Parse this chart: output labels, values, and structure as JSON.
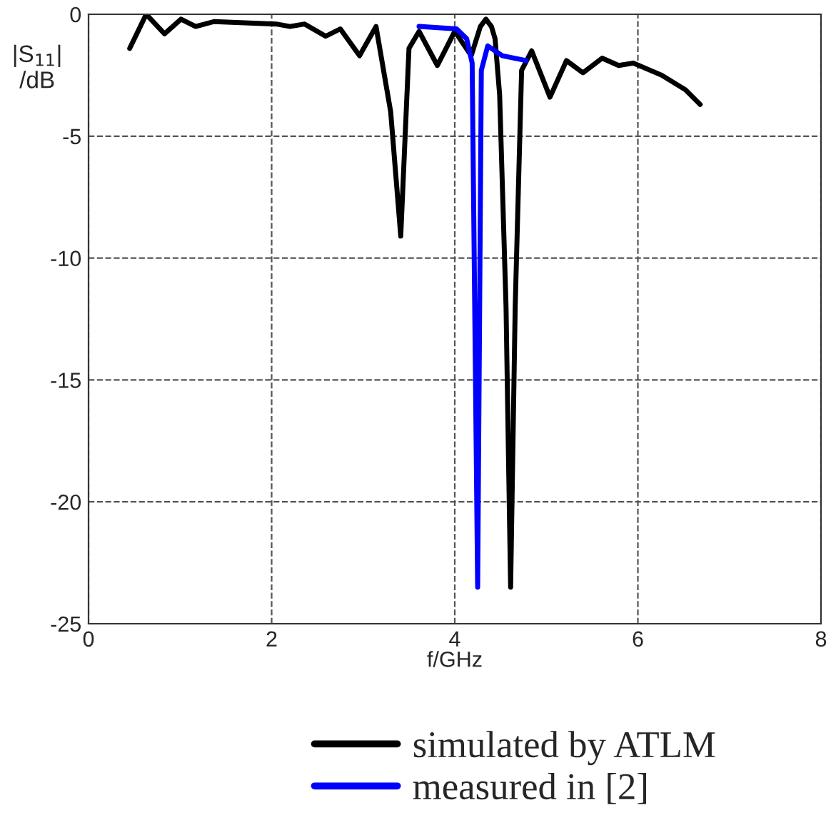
{
  "chart_data": {
    "type": "line",
    "xlabel": "f/GHz",
    "ylabel": "|S$_{11}$|\n/dB",
    "series": [
      {
        "name": "simulated by ATLM",
        "color": "#000000",
        "x": [
          0.45,
          0.63,
          0.83,
          1.01,
          1.17,
          1.37,
          2.05,
          2.2,
          2.36,
          2.59,
          2.75,
          2.96,
          3.14,
          3.3,
          3.41,
          3.5,
          3.61,
          3.81,
          4.0,
          4.18,
          4.28,
          4.34,
          4.4,
          4.44,
          4.49,
          4.56,
          4.61,
          4.66,
          4.73,
          4.84,
          5.04,
          5.22,
          5.4,
          5.61,
          5.79,
          5.95,
          6.26,
          6.52,
          6.68
        ],
        "values": [
          -1.4,
          0,
          -0.8,
          -0.2,
          -0.5,
          -0.3,
          -0.4,
          -0.5,
          -0.4,
          -0.9,
          -0.6,
          -1.7,
          -0.5,
          -4,
          -9.1,
          -1.4,
          -0.7,
          -2.1,
          -0.7,
          -1.7,
          -0.5,
          -0.2,
          -0.5,
          -1,
          -3.3,
          -12,
          -23.5,
          -12,
          -2.3,
          -1.5,
          -3.4,
          -1.9,
          -2.4,
          -1.8,
          -2.1,
          -2,
          -2.5,
          -3.1,
          -3.7
        ]
      },
      {
        "name": "measured in [2]",
        "color": "#0000ff",
        "x": [
          3.61,
          4.02,
          4.13,
          4.19,
          4.25,
          4.29,
          4.36,
          4.52,
          4.78
        ],
        "values": [
          -0.5,
          -0.6,
          -1,
          -2,
          -23.5,
          -2.3,
          -1.3,
          -1.7,
          -1.9
        ]
      }
    ],
    "xlim": [
      0,
      8
    ],
    "ylim": [
      -25,
      0
    ],
    "xticks": [
      0,
      2,
      4,
      6,
      8
    ],
    "yticks": [
      0,
      -5,
      -10,
      -15,
      -20,
      -25
    ],
    "grid": true,
    "legend": "bottom",
    "line_style": "solid",
    "marker": "none"
  }
}
